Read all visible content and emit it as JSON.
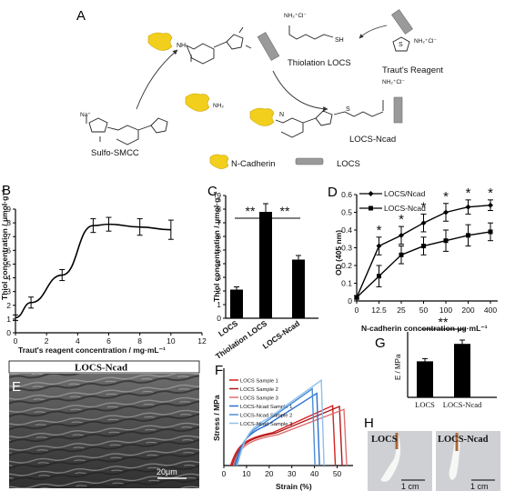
{
  "panels": {
    "a": {
      "letter": "A",
      "labels": {
        "thiolation": "Thiolation LOCS",
        "trauts": "Traut's Reagent",
        "ncad_product": "LOCS-Ncad",
        "sulfo": "Sulfo-SMCC",
        "legend_ncad": "N-Cadherin",
        "legend_locs": "LOCS",
        "nh2": "NH₂",
        "sh": "SH",
        "na": "Na⁺",
        "nh2cl": "NH₂⁺Cl⁻",
        "nh": "NH",
        "n": "N",
        "s": "S"
      }
    },
    "b": {
      "letter": "B"
    },
    "c": {
      "letter": "C"
    },
    "d": {
      "letter": "D"
    },
    "e": {
      "letter": "E",
      "title": "LOCS-Ncad",
      "scale": "20μm"
    },
    "f": {
      "letter": "F"
    },
    "g": {
      "letter": "G"
    },
    "h": {
      "letter": "H",
      "label_left": "LOCS",
      "label_right": "LOCS-Ncad",
      "scale_left": "1 cm",
      "scale_right": "1 cm"
    }
  },
  "chart_data": [
    {
      "panel": "B",
      "type": "line",
      "xlabel": "Traut's reagent concentration / mg·mL⁻¹",
      "ylabel": "Thiol concentration / μmol·g⁻¹",
      "xlim": [
        0,
        12
      ],
      "ylim": [
        0,
        9
      ],
      "xticks": [
        "0",
        "2",
        "4",
        "6",
        "8",
        "10",
        "12"
      ],
      "yticks": [
        "0",
        "1",
        "2",
        "3",
        "4",
        "5",
        "6",
        "7",
        "8",
        "9"
      ],
      "x": [
        0,
        1,
        3,
        5,
        6,
        8,
        10
      ],
      "y": [
        1.1,
        2.2,
        4.2,
        7.8,
        7.9,
        7.7,
        7.5
      ],
      "err": [
        0.2,
        0.4,
        0.4,
        0.5,
        0.5,
        0.6,
        0.7
      ]
    },
    {
      "panel": "C",
      "type": "bar",
      "ylabel": "Thiol concentration / μmol·g⁻¹",
      "categories": [
        "LOCS",
        "Thiolation LOCS",
        "LOCS-Ncad"
      ],
      "values": [
        2.1,
        7.8,
        4.3
      ],
      "err": [
        0.2,
        0.6,
        0.3
      ],
      "ylim": [
        0,
        9
      ],
      "yticks": [
        "0",
        "1",
        "2",
        "3",
        "4",
        "5",
        "6",
        "7",
        "8",
        "9"
      ],
      "significance": [
        "**",
        "**"
      ]
    },
    {
      "panel": "D",
      "type": "line",
      "xlabel": "N-cadherin concentration μg·mL⁻¹",
      "ylabel": "OD (405 nm)",
      "categories": [
        "0",
        "12.5",
        "25",
        "50",
        "100",
        "200",
        "400"
      ],
      "yticks": [
        "0",
        "0.1",
        "0.2",
        "0.3",
        "0.4",
        "0.5",
        "0.6"
      ],
      "ylim": [
        0,
        0.6
      ],
      "series": [
        {
          "name": "LOCS/Ncad",
          "values": [
            0.02,
            0.31,
            0.37,
            0.44,
            0.5,
            0.53,
            0.54
          ],
          "err": [
            0.01,
            0.05,
            0.05,
            0.05,
            0.05,
            0.04,
            0.03
          ]
        },
        {
          "name": "LOCS-Ncad",
          "values": [
            0.02,
            0.14,
            0.26,
            0.31,
            0.34,
            0.37,
            0.39
          ],
          "err": [
            0.01,
            0.06,
            0.05,
            0.05,
            0.06,
            0.06,
            0.05
          ]
        }
      ],
      "markers": [
        "*",
        "*",
        "*",
        "*",
        "*",
        "*"
      ]
    },
    {
      "panel": "F",
      "type": "line",
      "xlabel": "Strain (%)",
      "ylabel": "Stress / MPa",
      "xticks": [
        "0",
        "10",
        "20",
        "30",
        "40",
        "50"
      ],
      "xlim": [
        0,
        57
      ],
      "ylim": [
        0,
        260
      ],
      "series": [
        {
          "name": "LOCS Sample 1",
          "color": "#d42020",
          "peak_x": 48,
          "peak_y": 160
        },
        {
          "name": "LOCS Sample 2",
          "color": "#b01818",
          "peak_x": 51,
          "peak_y": 158
        },
        {
          "name": "LOCS Sample 3",
          "color": "#e07070",
          "peak_x": 53,
          "peak_y": 150
        },
        {
          "name": "LOCS-Ncad Sample 1",
          "color": "#2a6fd0",
          "peak_x": 41,
          "peak_y": 193
        },
        {
          "name": "LOCS-Ncad Sample 2",
          "color": "#4a8ed8",
          "peak_x": 39,
          "peak_y": 205
        },
        {
          "name": "LOCS-Ncad Sample 3",
          "color": "#8ec0ea",
          "peak_x": 43,
          "peak_y": 228
        }
      ]
    },
    {
      "panel": "G",
      "type": "bar",
      "ylabel": "E / MPa",
      "categories": [
        "LOCS",
        "LOCS-Ncad"
      ],
      "values": [
        330,
        490
      ],
      "err": [
        25,
        35
      ],
      "ylim": [
        0,
        600
      ],
      "significance": [
        "**"
      ]
    }
  ]
}
